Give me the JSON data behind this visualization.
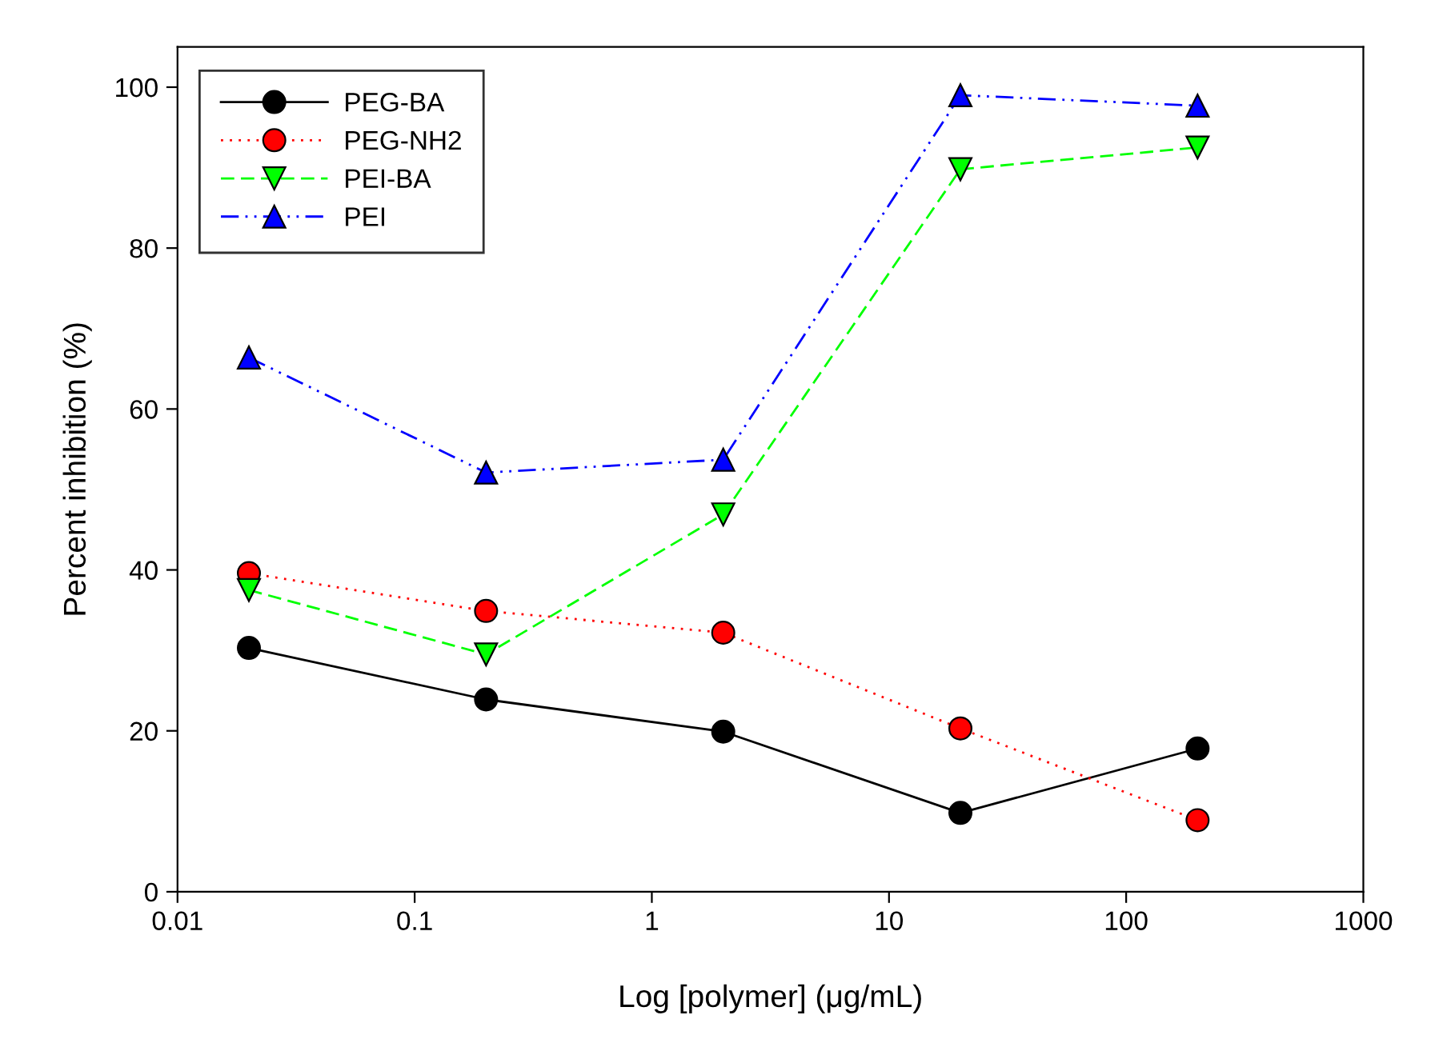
{
  "chart_data": {
    "type": "line",
    "xlabel": "Log [polymer] (μg/mL)",
    "ylabel": "Percent inhibition (%)",
    "x": [
      0.02,
      0.2,
      2,
      20,
      200
    ],
    "series": [
      {
        "name": "PEG-BA",
        "color": "#000000",
        "marker": "circle",
        "line_style": "solid",
        "values": [
          30.3,
          23.9,
          19.9,
          9.8,
          17.8
        ]
      },
      {
        "name": "PEG-NH2",
        "color": "#ff0000",
        "marker": "circle",
        "line_style": "dotted",
        "values": [
          39.6,
          34.9,
          32.2,
          20.3,
          8.9
        ]
      },
      {
        "name": "PEI-BA",
        "color": "#00ff00",
        "marker": "triangle_down",
        "line_style": "dashed",
        "values": [
          37.5,
          29.5,
          46.9,
          89.8,
          92.5
        ]
      },
      {
        "name": "PEI",
        "color": "#0000ff",
        "marker": "triangle",
        "line_style": "dashdot",
        "values": [
          66.4,
          52.1,
          53.7,
          99.0,
          97.7
        ]
      }
    ],
    "log": "x",
    "xlim": [
      0.01,
      1000
    ],
    "xticks": [
      0.01,
      0.1,
      1,
      10,
      100,
      1000
    ],
    "ylim": [
      0,
      105
    ],
    "yticks": [
      0,
      20,
      40,
      60,
      80,
      100
    ],
    "grid": false,
    "legend": "top left"
  }
}
